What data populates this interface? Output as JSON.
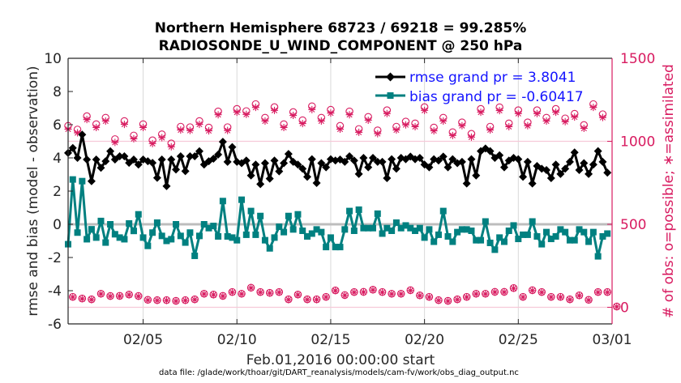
{
  "chart_data": {
    "type": "line",
    "title": [
      "Northern Hemisphere 68723 / 69218 = 99.285%",
      "RADIOSONDE_U_WIND_COMPONENT @ 250 hPa"
    ],
    "xlabel": "Feb.01,2016 00:00:00 start",
    "ylabel": "rmse and bias (model - observation)",
    "ylabel_right": "# of obs: o=possible; ∗=assimilated",
    "footnote": "data file: /glade/work/thoar/git/DART_reanalysis/models/cam-fv/work/obs_diag_output.nc",
    "xlim_days": [
      0,
      29
    ],
    "ylim": [
      -6,
      10
    ],
    "ylim_right": [
      -100,
      1500
    ],
    "x_ticks": [
      {
        "day": 4,
        "label": "02/05"
      },
      {
        "day": 9,
        "label": "02/10"
      },
      {
        "day": 14,
        "label": "02/15"
      },
      {
        "day": 19,
        "label": "02/20"
      },
      {
        "day": 24,
        "label": "02/25"
      },
      {
        "day": 29,
        "label": "03/01"
      }
    ],
    "y_ticks": [
      {
        "v": 10,
        "label": "10"
      },
      {
        "v": 8,
        "label": "8"
      },
      {
        "v": 6,
        "label": "6"
      },
      {
        "v": 4,
        "label": "4"
      },
      {
        "v": 2,
        "label": "2"
      },
      {
        "v": 0,
        "label": "0"
      },
      {
        "v": -2,
        "label": "-2"
      },
      {
        "v": -4,
        "label": "-4"
      },
      {
        "v": -6,
        "label": "-6"
      }
    ],
    "y_ticks_right": [
      {
        "v": 1500,
        "label": "1500"
      },
      {
        "v": 1000,
        "label": "1000"
      },
      {
        "v": 500,
        "label": "500"
      },
      {
        "v": 0,
        "label": "0"
      }
    ],
    "legend": {
      "placement": "top-right",
      "entries": [
        "rmse grand pr = 3.8041",
        "bias grand pr = -0.60417"
      ]
    },
    "colors": {
      "rmse": "#000000",
      "bias": "#008080",
      "obs": "#d81b60",
      "legend_text": "#1414ff",
      "grid": "#d9d9d9",
      "zero": "#bdbdbd",
      "obs_ref": "#f6c9d8"
    },
    "series": [
      {
        "name": "rmse",
        "x_start": 0,
        "x_step": 0.25,
        "values": [
          4.3,
          4.6,
          4.0,
          5.4,
          3.9,
          2.6,
          3.9,
          3.4,
          3.8,
          4.4,
          3.9,
          4.1,
          4.1,
          3.7,
          3.9,
          3.6,
          3.9,
          3.8,
          3.7,
          2.8,
          3.9,
          2.3,
          3.9,
          3.3,
          4.1,
          3.2,
          4.1,
          4.1,
          4.4,
          3.6,
          3.8,
          3.95,
          4.2,
          4.97,
          3.76,
          4.65,
          3.76,
          3.68,
          3.84,
          2.94,
          3.6,
          2.42,
          3.68,
          2.75,
          3.84,
          3.19,
          3.68,
          4.24,
          3.76,
          3.6,
          3.35,
          2.86,
          3.92,
          2.49,
          3.68,
          3.43,
          3.92,
          3.84,
          3.9,
          3.76,
          4.1,
          3.84,
          3.03,
          4.0,
          3.43,
          4.0,
          3.76,
          3.76,
          2.78,
          3.92,
          3.35,
          4.0,
          3.92,
          4.08,
          3.92,
          4.0,
          3.6,
          3.43,
          3.92,
          3.84,
          4.08,
          3.43,
          3.92,
          3.68,
          3.76,
          2.46,
          3.92,
          2.94,
          4.41,
          4.57,
          4.41,
          4.0,
          4.16,
          3.43,
          3.84,
          4.0,
          3.92,
          2.86,
          3.76,
          2.46,
          3.51,
          3.35,
          3.27,
          2.78,
          3.6,
          3.03,
          3.35,
          3.76,
          4.33,
          3.27,
          3.68,
          3.03,
          3.6,
          4.41,
          3.76,
          3.11
        ]
      },
      {
        "name": "bias",
        "x_start": 0,
        "x_step": 0.25,
        "values": [
          -1.2,
          2.7,
          -0.5,
          2.6,
          -0.9,
          -0.3,
          -0.8,
          0.2,
          -1.1,
          0,
          -0.6,
          -0.8,
          -0.9,
          0.05,
          -0.4,
          0.6,
          -0.8,
          -1.3,
          -0.5,
          0.1,
          -0.7,
          -1.0,
          -0.9,
          0,
          -0.7,
          -1.1,
          -0.5,
          -1.9,
          -0.7,
          0,
          -0.23,
          -0.1,
          -0.73,
          1.4,
          -0.73,
          -0.8,
          -0.96,
          1.48,
          -0.63,
          0.8,
          -0.63,
          0.5,
          -0.96,
          -1.45,
          -0.8,
          -0.15,
          -0.47,
          0.5,
          -0.31,
          0.6,
          -0.39,
          -0.73,
          -0.56,
          -0.31,
          -0.47,
          -1.37,
          -0.8,
          -1.37,
          -1.37,
          -0.31,
          0.8,
          -0.39,
          0.88,
          -0.23,
          -0.23,
          -0.23,
          0.64,
          -0.56,
          -0.23,
          -0.39,
          0.1,
          -0.23,
          -0.07,
          -0.23,
          -0.39,
          -0.23,
          -0.8,
          -0.31,
          -1.05,
          -0.63,
          0.8,
          -0.73,
          -1.05,
          -0.47,
          -0.31,
          -0.31,
          -0.39,
          -0.96,
          -0.96,
          0.17,
          -1.12,
          -1.53,
          -0.8,
          -1.05,
          -0.39,
          -0.07,
          -0.88,
          -0.63,
          -0.63,
          0.17,
          -0.73,
          -1.2,
          -0.47,
          -0.88,
          -0.73,
          -0.31,
          -0.47,
          -0.96,
          -0.96,
          -0.31,
          -0.47,
          -1.05,
          -0.47,
          -1.93,
          -0.73,
          -0.56
        ]
      },
      {
        "name": "obs_possible_00_12Z",
        "axis": "right",
        "x_start": 0,
        "x_step": 0.5,
        "values": [
          1093,
          1071,
          1151,
          1103,
          1142,
          1013,
          1122,
          1035,
          1103,
          1006,
          1042,
          987,
          1088,
          1085,
          1122,
          1083,
          1180,
          1085,
          1195,
          1182,
          1224,
          1142,
          1206,
          1103,
          1176,
          1127,
          1211,
          1142,
          1190,
          1093,
          1180,
          1074,
          1147,
          1066,
          1187,
          1088,
          1119,
          1108,
          1206,
          1083,
          1142,
          1055,
          1114,
          1045,
          1195,
          1088,
          1205,
          1108,
          1187,
          1114,
          1187,
          1142,
          1195,
          1138,
          1166,
          1098,
          1224,
          1163
        ]
      },
      {
        "name": "obs_assimilated_00_12Z",
        "axis": "right",
        "x_start": 0,
        "x_step": 0.5,
        "values": [
          1073,
          1051,
          1131,
          1083,
          1122,
          993,
          1102,
          1015,
          1083,
          986,
          1022,
          967,
          1068,
          1065,
          1102,
          1063,
          1160,
          1065,
          1175,
          1162,
          1204,
          1122,
          1186,
          1083,
          1156,
          1107,
          1191,
          1122,
          1170,
          1073,
          1160,
          1054,
          1127,
          1046,
          1167,
          1068,
          1099,
          1088,
          1186,
          1063,
          1122,
          1035,
          1094,
          1025,
          1175,
          1068,
          1185,
          1088,
          1167,
          1094,
          1167,
          1122,
          1175,
          1118,
          1146,
          1078,
          1204,
          1143
        ]
      },
      {
        "name": "obs_possible_06_18Z",
        "axis": "right",
        "x_start": 0.25,
        "x_step": 0.5,
        "values": [
          63,
          53,
          48,
          82,
          68,
          69,
          77,
          68,
          45,
          43,
          43,
          39,
          43,
          48,
          82,
          77,
          69,
          92,
          82,
          118,
          92,
          87,
          92,
          48,
          77,
          48,
          48,
          63,
          102,
          74,
          92,
          93,
          106,
          92,
          82,
          82,
          103,
          72,
          63,
          43,
          39,
          48,
          63,
          82,
          82,
          93,
          93,
          116,
          63,
          103,
          92,
          63,
          63,
          48,
          72,
          45,
          92,
          92,
          5
        ]
      },
      {
        "name": "obs_assimilated_06_18Z",
        "axis": "right",
        "x_start": 0.25,
        "x_step": 0.5,
        "values": [
          61,
          51,
          46,
          80,
          66,
          67,
          75,
          66,
          43,
          41,
          41,
          37,
          41,
          46,
          80,
          75,
          67,
          90,
          80,
          116,
          90,
          85,
          90,
          46,
          75,
          46,
          46,
          61,
          100,
          72,
          90,
          91,
          104,
          90,
          80,
          80,
          101,
          70,
          61,
          41,
          37,
          46,
          61,
          80,
          80,
          91,
          91,
          114,
          61,
          101,
          90,
          61,
          61,
          46,
          70,
          43,
          90,
          90,
          3
        ]
      }
    ]
  }
}
